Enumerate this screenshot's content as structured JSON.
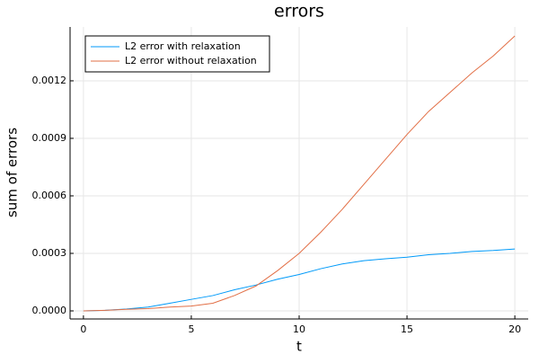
{
  "chart_data": {
    "type": "line",
    "title": "errors",
    "x_label": "t",
    "y_label": "sum of errors",
    "x": [
      0,
      1,
      2,
      3,
      4,
      5,
      6,
      7,
      8,
      9,
      10,
      11,
      12,
      13,
      14,
      15,
      16,
      17,
      18,
      19,
      20
    ],
    "series": [
      {
        "name": "L2 error with relaxation",
        "color": "#009af9",
        "values": [
          0,
          3e-06,
          1e-05,
          2e-05,
          4e-05,
          6e-05,
          8e-05,
          0.00011,
          0.000135,
          0.000165,
          0.00019,
          0.00022,
          0.000245,
          0.000262,
          0.000272,
          0.00028,
          0.000293,
          0.0003,
          0.00031,
          0.000315,
          0.000323
        ]
      },
      {
        "name": "L2 error without relaxation",
        "color": "#e26f46",
        "values": [
          0,
          3e-06,
          8e-06,
          1.2e-05,
          2e-05,
          2.5e-05,
          4e-05,
          8e-05,
          0.00013,
          0.00021,
          0.0003,
          0.00041,
          0.00053,
          0.00066,
          0.00079,
          0.00092,
          0.00104,
          0.00114,
          0.00124,
          0.00133,
          0.001434
        ]
      }
    ],
    "xlim": [
      -0.62,
      20.62
    ],
    "ylim": [
      -4.22e-05,
      0.001481
    ],
    "xticks": [
      0,
      5,
      10,
      15,
      20
    ],
    "yticks": [
      {
        "value": 0,
        "label": "0.0000"
      },
      {
        "value": 0.0003,
        "label": "0.0003"
      },
      {
        "value": 0.0006,
        "label": "0.0006"
      },
      {
        "value": 0.0009,
        "label": "0.0009"
      },
      {
        "value": 0.0012,
        "label": "0.0012"
      }
    ],
    "grid": true,
    "legend": "top-left"
  }
}
